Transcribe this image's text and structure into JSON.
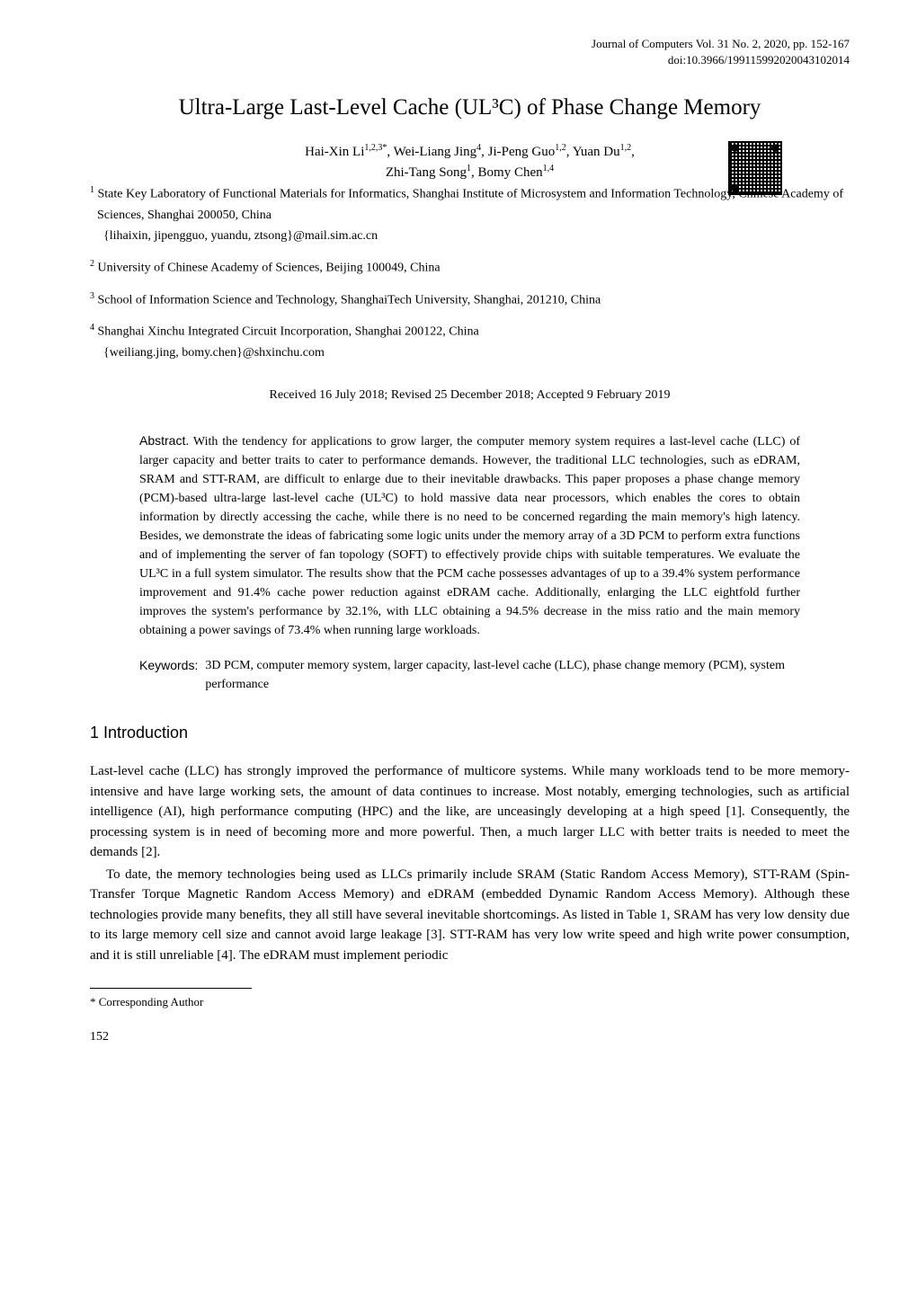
{
  "header": {
    "journal": "Journal of Computers Vol. 31 No. 2, 2020, pp. 152-167",
    "doi": "doi:10.3966/199115992020043102014"
  },
  "title": "Ultra-Large Last-Level Cache (UL³C) of Phase Change Memory",
  "authors": {
    "line1": "Hai-Xin Li1,2,3*, Wei-Liang Jing4, Ji-Peng Guo1,2, Yuan Du1,2,",
    "line2": "Zhi-Tang Song1, Bomy Chen1,4",
    "a1_sup": "1,2,3*",
    "a1": "Hai-Xin Li",
    "a2_sup": "4",
    "a2": "Wei-Liang Jing",
    "a3_sup": "1,2",
    "a3": "Ji-Peng Guo",
    "a4_sup": "1,2",
    "a4": "Yuan Du",
    "a5_sup": "1",
    "a5": "Zhi-Tang Song",
    "a6_sup": "1,4",
    "a6": "Bomy Chen"
  },
  "affiliations": {
    "aff1_sup": "1",
    "aff1_line1": "State Key Laboratory of Functional Materials for Informatics, Shanghai Institute of Microsystem and Information Technology, Chinese Academy of Sciences, Shanghai 200050, China",
    "aff1_email": "{lihaixin, jipengguo, yuandu, ztsong}@mail.sim.ac.cn",
    "aff2_sup": "2",
    "aff2": "University of Chinese Academy of Sciences, Beijing 100049, China",
    "aff3_sup": "3",
    "aff3": "School of Information Science and Technology, ShanghaiTech University, Shanghai, 201210, China",
    "aff4_sup": "4",
    "aff4": "Shanghai Xinchu Integrated Circuit Incorporation, Shanghai 200122, China",
    "aff4_email": "{weiliang.jing, bomy.chen}@shxinchu.com"
  },
  "received": "Received 16 July 2018; Revised 25 December 2018; Accepted 9 February 2019",
  "abstract": {
    "label": "Abstract.",
    "text": "With the tendency for applications to grow larger, the computer memory system requires a last-level cache (LLC) of larger capacity and better traits to cater to performance demands. However, the traditional LLC technologies, such as eDRAM, SRAM and STT-RAM, are difficult to enlarge due to their inevitable drawbacks. This paper proposes a phase change memory (PCM)-based ultra-large last-level cache (UL³C) to hold massive data near processors, which enables the cores to obtain information by directly accessing the cache, while there is no need to be concerned regarding the main memory's high latency. Besides, we demonstrate the ideas of fabricating some logic units under the memory array of a 3D PCM to perform extra functions and of implementing the server of fan topology (SOFT) to effectively provide chips with suitable temperatures. We evaluate the UL³C in a full system simulator. The results show that the PCM cache possesses advantages of up to a 39.4% system performance improvement and 91.4% cache power reduction against eDRAM cache. Additionally, enlarging the LLC eightfold further improves the system's performance by 32.1%, with LLC obtaining a 94.5% decrease in the miss ratio and the main memory obtaining a power savings of 73.4% when running large workloads."
  },
  "keywords": {
    "label": "Keywords: ",
    "text": "3D PCM, computer memory system, larger capacity, last-level cache (LLC), phase change memory (PCM), system performance"
  },
  "introduction": {
    "heading": "1   Introduction",
    "p1": "Last-level cache (LLC) has strongly improved the performance of multicore systems. While many workloads tend to be more memory-intensive and have large working sets, the amount of data continues to increase. Most notably, emerging technologies, such as artificial intelligence (AI), high performance computing (HPC) and the like, are unceasingly developing at a high speed [1]. Consequently, the processing system is in need of becoming more and more powerful. Then, a much larger LLC with better traits is needed to meet the demands [2].",
    "p2": "To date, the memory technologies being used as LLCs primarily include SRAM (Static Random Access Memory), STT-RAM (Spin-Transfer Torque Magnetic Random Access Memory) and eDRAM (embedded Dynamic Random Access Memory). Although these technologies provide many benefits, they all still have several inevitable shortcomings. As listed in Table 1, SRAM has very low density due to its large memory cell size and cannot avoid large leakage [3]. STT-RAM has very low write speed and high write power consumption, and it is still unreliable [4]. The eDRAM must implement periodic"
  },
  "footnote": {
    "marker": "*",
    "text": "Corresponding Author"
  },
  "page_number": "152"
}
